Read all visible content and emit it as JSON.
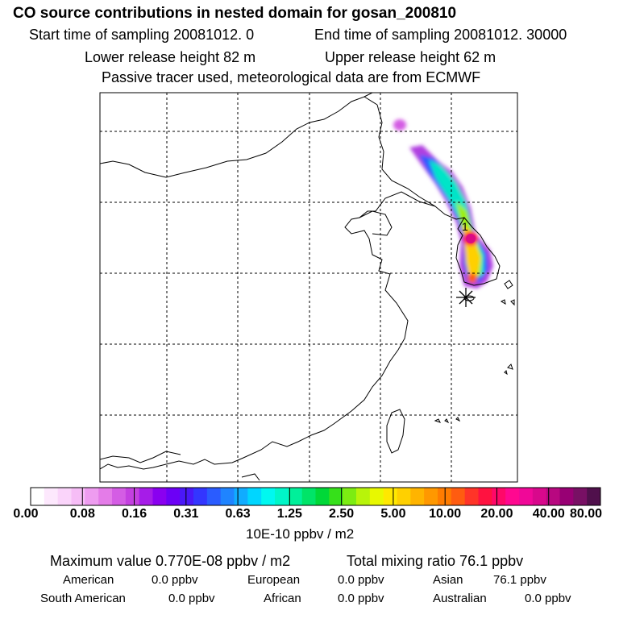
{
  "title": "CO  source contributions in nested domain for gosan_200810",
  "sampling": {
    "start": "Start time of sampling 20081012.     0",
    "end": "End time of sampling 20081012. 30000"
  },
  "release": {
    "lower": "Lower release height   82 m",
    "upper": "Upper release height   62 m"
  },
  "note": "Passive tracer used, meteorological data are from ECMWF",
  "map": {
    "receptor_label": "1",
    "receptor_marker": "asterisk-icon"
  },
  "colorbar": {
    "ticks": [
      "0.00",
      "0.08",
      "0.16",
      "0.31",
      "0.63",
      "1.25",
      "2.50",
      "5.00",
      "10.00",
      "20.00",
      "40.00",
      "80.00"
    ],
    "unit": "10E-10 ppbv / m2",
    "colors": [
      "#ffffff",
      "#fde8fd",
      "#fad4fa",
      "#f6bdf6",
      "#ee9cf0",
      "#e47ce8",
      "#d45de4",
      "#c440e0",
      "#a61ce8",
      "#8a00f0",
      "#6c00f6",
      "#4a18f8",
      "#3336ff",
      "#2a5cff",
      "#1f84ff",
      "#10acff",
      "#00d6ff",
      "#00f8f0",
      "#00f6c8",
      "#00f09a",
      "#00e468",
      "#00d838",
      "#36e01a",
      "#7cec12",
      "#b8f40a",
      "#e8f800",
      "#ffe800",
      "#ffd000",
      "#ffb400",
      "#ff9800",
      "#ff7c00",
      "#ff5c10",
      "#ff3428",
      "#ff1240",
      "#ff0868",
      "#ff0890",
      "#f00898",
      "#d8088c",
      "#b80880",
      "#980074",
      "#781064",
      "#50104c"
    ]
  },
  "stats": {
    "maximum": "Maximum value  0.770E-08 ppbv / m2",
    "total": "Total mixing ratio       76.1 ppbv"
  },
  "regions": [
    {
      "name": "American",
      "value": "0.0 ppbv"
    },
    {
      "name": "European",
      "value": "0.0 ppbv"
    },
    {
      "name": "Asian",
      "value": "76.1 ppbv"
    },
    {
      "name": "South American",
      "value": "0.0 ppbv"
    },
    {
      "name": "African",
      "value": "0.0 ppbv"
    },
    {
      "name": "Australian",
      "value": "0.0 ppbv"
    }
  ]
}
